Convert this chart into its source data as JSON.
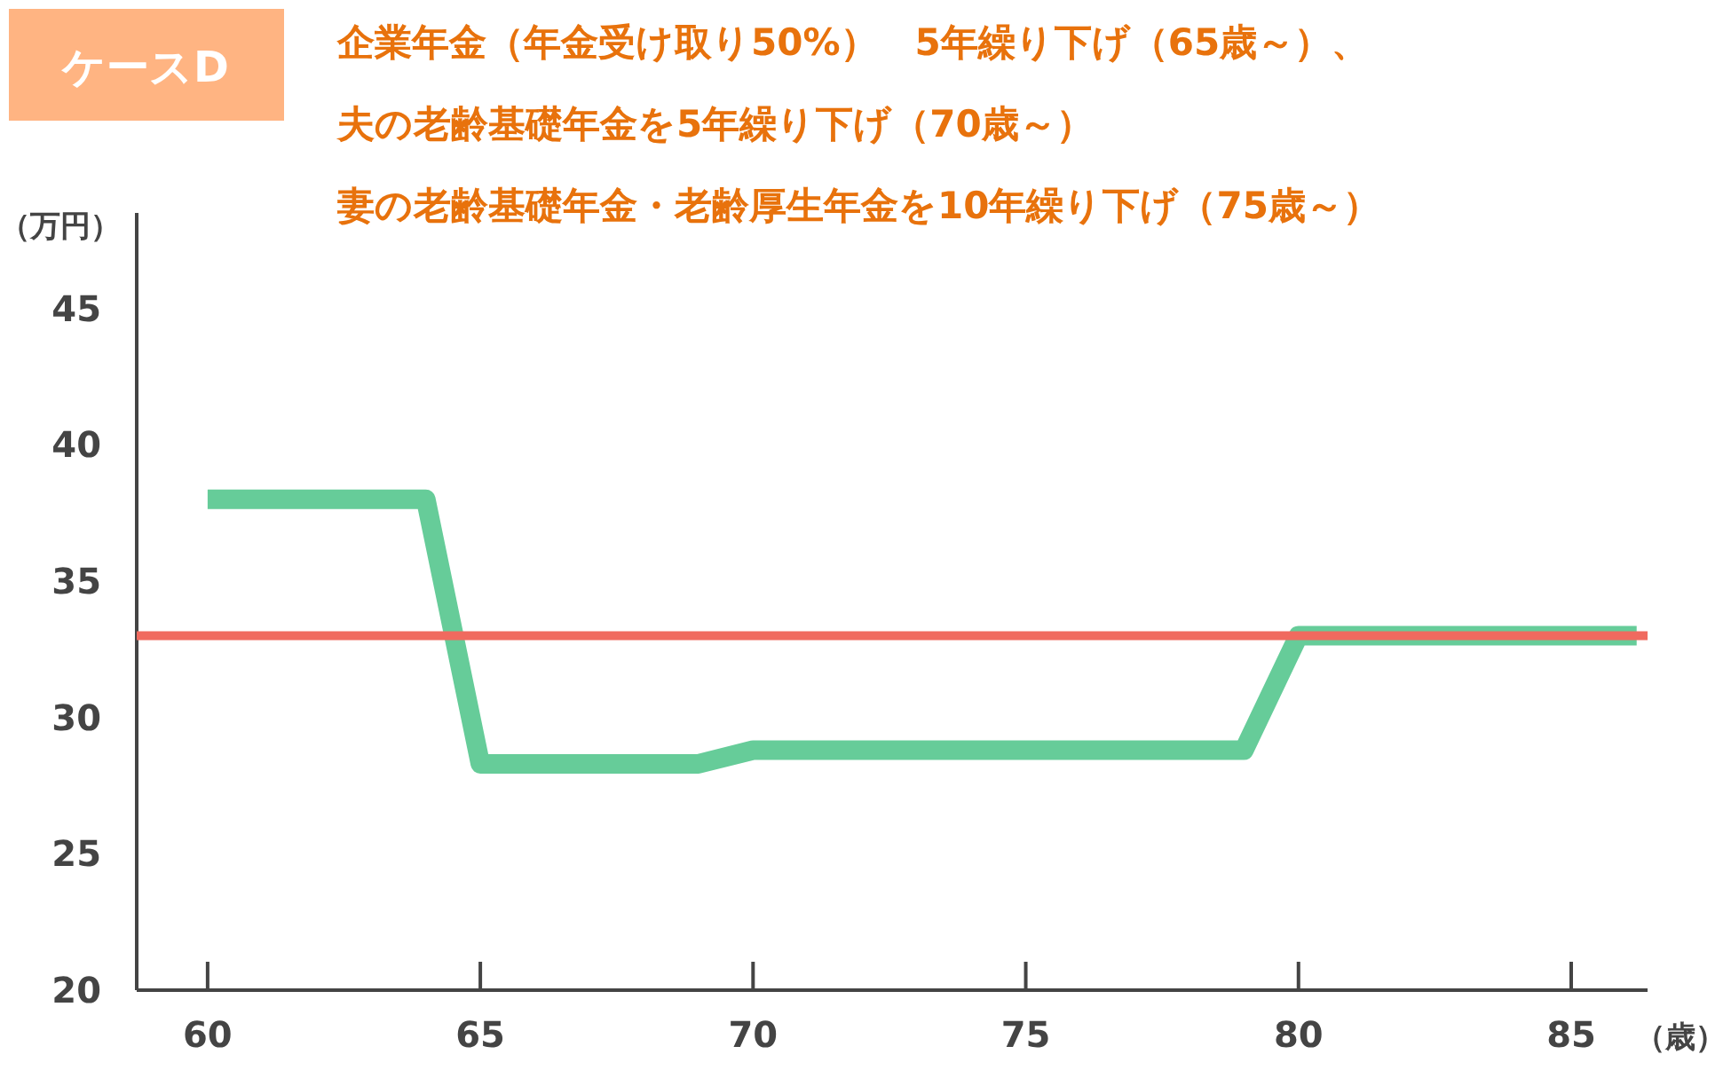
{
  "chart_data": {
    "type": "line",
    "title": "ケースD",
    "annotations": [
      "企業年金（年金受け取り50%）　5年繰り下げ（65歳～）、",
      "夫の老齢基礎年金を5年繰り下げ（70歳～）",
      "妻の老齢基礎年金・老齢厚生年金を10年繰り下げ（75歳～）"
    ],
    "xlabel": "（歳）",
    "ylabel": "（万円）",
    "series": [
      {
        "color": "#66cc99",
        "x": [
          60,
          64,
          65,
          69,
          70,
          79,
          80,
          86.2
        ],
        "values": [
          38,
          38,
          28.3,
          28.3,
          28.8,
          28.8,
          33,
          33
        ]
      }
    ],
    "ref_lines": [
      {
        "axis": "y",
        "value": 33,
        "color": "#f06a5f"
      }
    ],
    "xlim": [
      58.7,
      86.4
    ],
    "ylim": [
      20,
      48.5
    ],
    "xticks": [
      60,
      65,
      70,
      75,
      80,
      85
    ],
    "yticks": [
      20,
      25,
      30,
      35,
      40,
      45
    ],
    "grid": false,
    "marker": "none",
    "line_style": "solid"
  }
}
